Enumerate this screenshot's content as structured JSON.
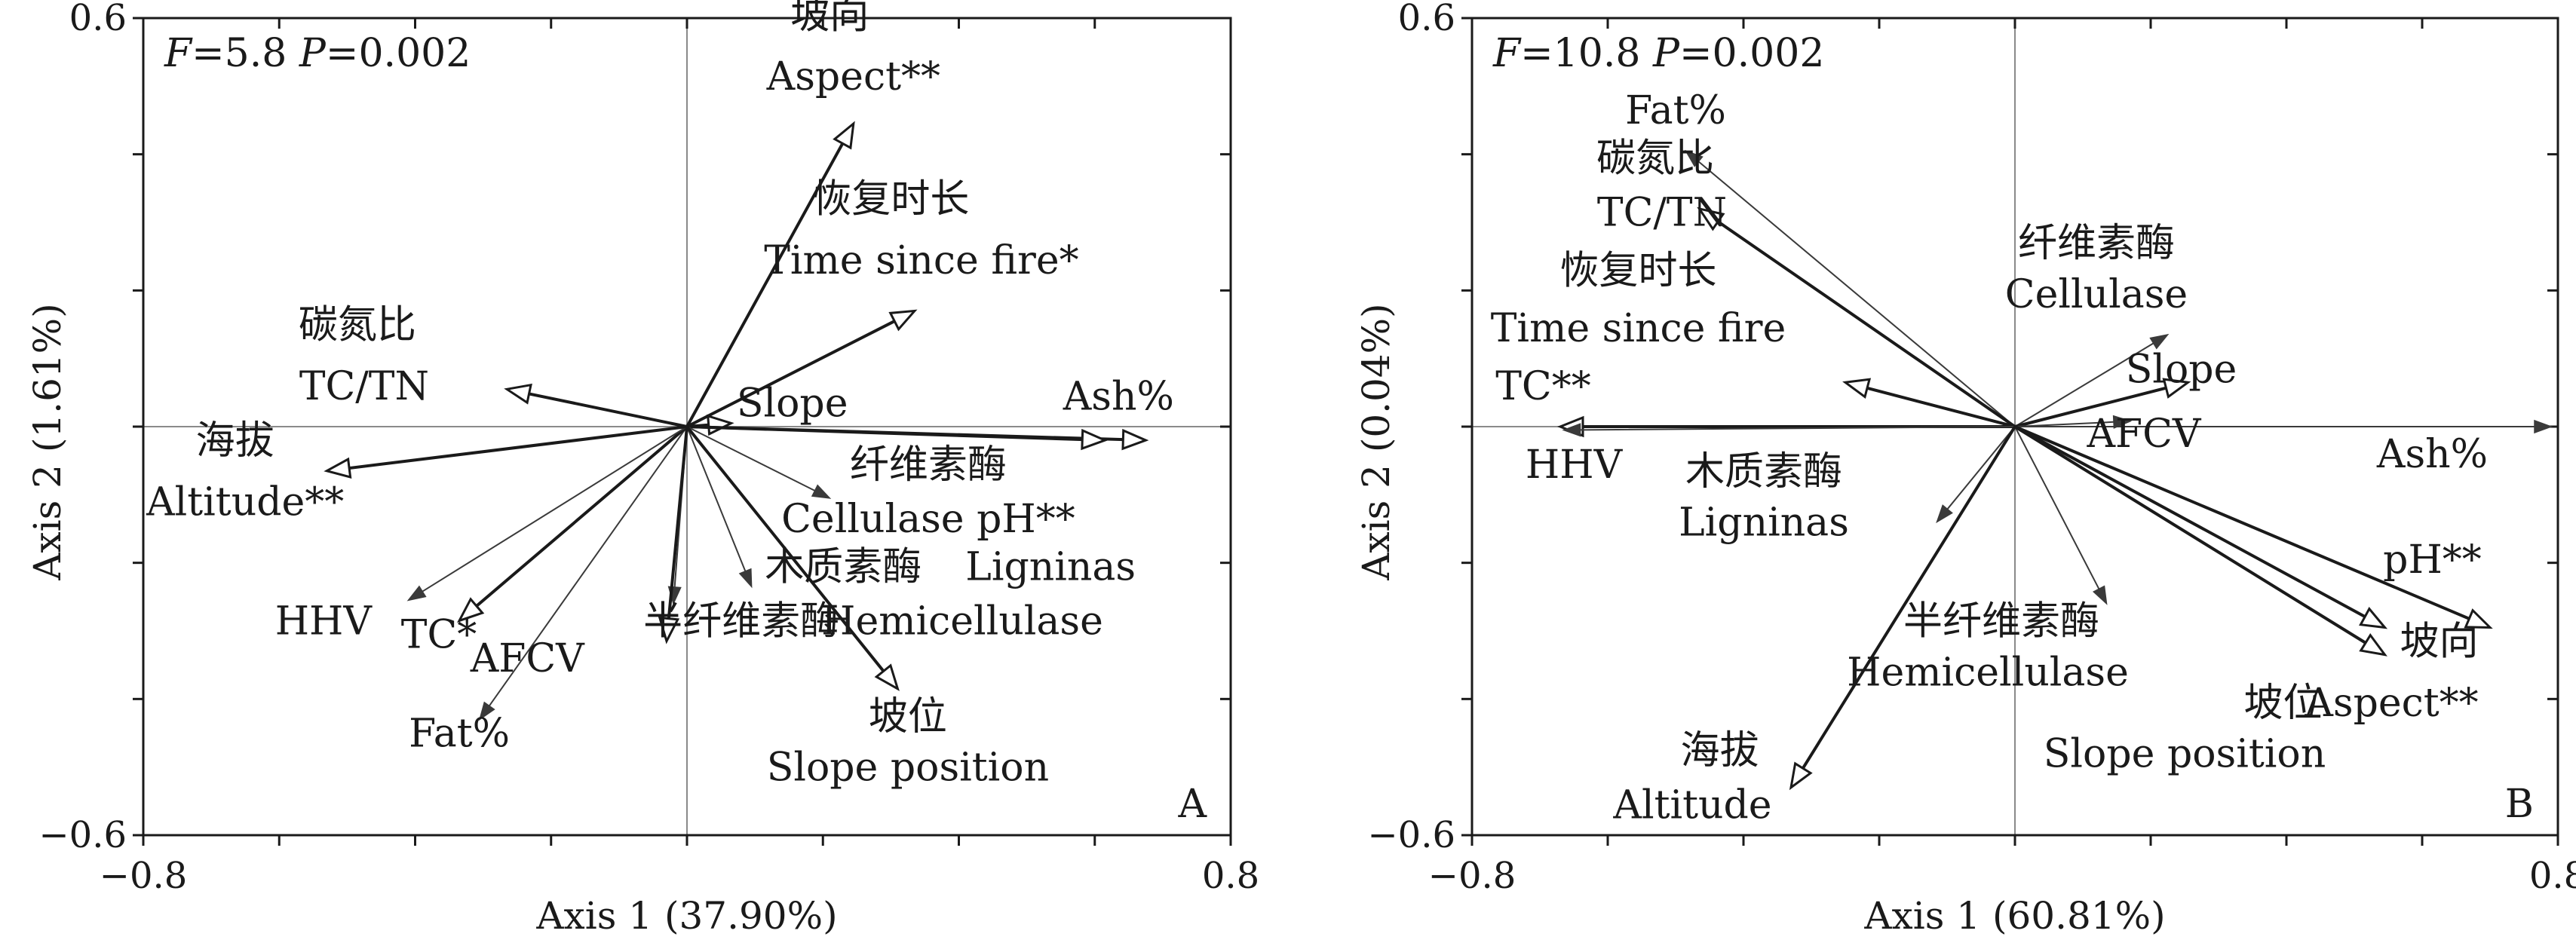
{
  "chart_data": [
    {
      "type": "rda-biplot",
      "panel_label": "A",
      "stats": {
        "F": "5.8",
        "P": "0.002"
      },
      "xlabel": "Axis 1 (37.90%)",
      "ylabel": "Axis 2 (1.61%)",
      "xlim": [
        -0.8,
        0.8
      ],
      "ylim": [
        -0.6,
        0.6
      ],
      "x_tick_labels": [
        "−0.8",
        "0.8"
      ],
      "y_tick_labels": [
        "0.6",
        "−0.6"
      ],
      "grid": false,
      "vectors": [
        {
          "label": "坡向 Aspect**",
          "group": "environment",
          "x": 0.245,
          "y": 0.445
        },
        {
          "label": "恢复时长 Time since fire*",
          "group": "environment",
          "x": 0.335,
          "y": 0.17
        },
        {
          "label": "Slope",
          "group": "environment",
          "x": 0.065,
          "y": 0.005
        },
        {
          "label": "Ash%",
          "group": "property",
          "x": 0.675,
          "y": -0.02
        },
        {
          "label": "pH**",
          "group": "environment",
          "x": 0.615,
          "y": -0.02
        },
        {
          "label": "纤维素酶 Cellulase",
          "group": "enzyme",
          "x": 0.21,
          "y": -0.105
        },
        {
          "label": "木质素酶 Ligninas",
          "group": "enzyme",
          "x": 0.095,
          "y": -0.235
        },
        {
          "label": "坡位 Slope position",
          "group": "environment",
          "x": 0.31,
          "y": -0.385
        },
        {
          "label": "半纤维素酶 Hemicellulase",
          "group": "enzyme",
          "x": -0.02,
          "y": -0.26
        },
        {
          "label": "AFCV",
          "group": "property",
          "x": -0.03,
          "y": -0.315
        },
        {
          "label": "Fat%",
          "group": "property",
          "x": -0.305,
          "y": -0.43
        },
        {
          "label": "TC*",
          "group": "environment",
          "x": -0.335,
          "y": -0.285
        },
        {
          "label": "HHV",
          "group": "property",
          "x": -0.41,
          "y": -0.255
        },
        {
          "label": "海拔 Altitude**",
          "group": "environment",
          "x": -0.53,
          "y": -0.065
        },
        {
          "label": "碳氮比 TC/TN",
          "group": "environment",
          "x": -0.265,
          "y": 0.055
        }
      ],
      "text_labels": [
        {
          "text": "坡向"
        },
        {
          "text": "Aspect**"
        },
        {
          "text": "恢复时长"
        },
        {
          "text": "Time since fire*"
        },
        {
          "text": "Slope"
        },
        {
          "text": "Ash%"
        },
        {
          "text": "碳氮比"
        },
        {
          "text": "TC/TN"
        },
        {
          "text": "海拔"
        },
        {
          "text": "Altitude**"
        },
        {
          "text": "纤维素酶"
        },
        {
          "text": "Cellulase pH**"
        },
        {
          "text": "木质素酶"
        },
        {
          "text": "Ligninas"
        },
        {
          "text": "HHV"
        },
        {
          "text": "TC*"
        },
        {
          "text": "AFCV"
        },
        {
          "text": "半纤维素酶"
        },
        {
          "text": "Hemicellulase"
        },
        {
          "text": "坡位"
        },
        {
          "text": "Slope position"
        },
        {
          "text": "Fat%"
        }
      ]
    },
    {
      "type": "rda-biplot",
      "panel_label": "B",
      "stats": {
        "F": "10.8",
        "P": "0.002"
      },
      "xlabel": "Axis 1 (60.81%)",
      "ylabel": "Axis 2 (0.04%)",
      "xlim": [
        -0.8,
        0.8
      ],
      "ylim": [
        -0.6,
        0.6
      ],
      "x_tick_labels": [
        "−0.8",
        "0.8"
      ],
      "y_tick_labels": [
        "0.6",
        "−0.6"
      ],
      "grid": false,
      "vectors": [
        {
          "label": "Fat%",
          "group": "property",
          "x": -0.485,
          "y": 0.405
        },
        {
          "label": "碳氮比 TC/TN",
          "group": "environment",
          "x": -0.465,
          "y": 0.32
        },
        {
          "label": "恢复时长 Time since fire",
          "group": "environment",
          "x": -0.25,
          "y": 0.065
        },
        {
          "label": "TC**",
          "group": "environment",
          "x": -0.67,
          "y": 0.0
        },
        {
          "label": "HHV",
          "group": "property",
          "x": -0.665,
          "y": -0.005
        },
        {
          "label": "木质素酶 Ligninas",
          "group": "enzyme",
          "x": -0.115,
          "y": -0.14
        },
        {
          "label": "海拔 Altitude",
          "group": "environment",
          "x": -0.33,
          "y": -0.53
        },
        {
          "label": "半纤维素酶 Hemicellulase",
          "group": "enzyme",
          "x": 0.135,
          "y": -0.26
        },
        {
          "label": "纤维素酶 Cellulase",
          "group": "enzyme",
          "x": 0.225,
          "y": 0.135
        },
        {
          "label": "Slope",
          "group": "environment",
          "x": 0.255,
          "y": 0.065
        },
        {
          "label": "AFCV",
          "group": "property",
          "x": 0.17,
          "y": 0.008
        },
        {
          "label": "Ash%",
          "group": "property",
          "x": 0.79,
          "y": 0.0
        },
        {
          "label": "pH**",
          "group": "environment",
          "x": 0.7,
          "y": -0.295
        },
        {
          "label": "坡向 Aspect**",
          "group": "environment",
          "x": 0.545,
          "y": -0.295
        },
        {
          "label": "坡位 Slope position",
          "group": "environment",
          "x": 0.545,
          "y": -0.335
        }
      ],
      "text_labels": [
        {
          "text": "Fat%"
        },
        {
          "text": "碳氮比"
        },
        {
          "text": "TC/TN"
        },
        {
          "text": "恢复时长"
        },
        {
          "text": "Time since fire"
        },
        {
          "text": "TC**"
        },
        {
          "text": "HHV"
        },
        {
          "text": "木质素酶"
        },
        {
          "text": "Ligninas"
        },
        {
          "text": "纤维素酶"
        },
        {
          "text": "Cellulase"
        },
        {
          "text": "Slope"
        },
        {
          "text": "AFCV"
        },
        {
          "text": "Ash%"
        },
        {
          "text": "pH**"
        },
        {
          "text": "坡向"
        },
        {
          "text": "坡位"
        },
        {
          "text": "Aspect**"
        },
        {
          "text": "Slope position"
        },
        {
          "text": "半纤维素酶"
        },
        {
          "text": "Hemicellulase"
        },
        {
          "text": "海拔"
        },
        {
          "text": "Altitude"
        }
      ]
    }
  ],
  "colors": {
    "environment_arrow": "#1a1a1a",
    "species_arrow": "#3a3a3a",
    "axis_line": "#8a8a8a",
    "text": "#1a1a1a"
  }
}
